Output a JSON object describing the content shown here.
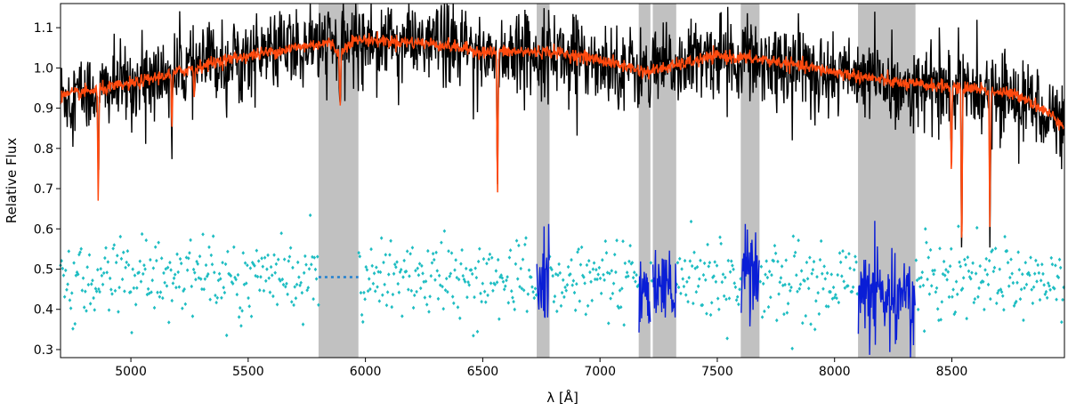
{
  "chart_data": {
    "type": "line",
    "title": "",
    "xlabel": "λ [Å]",
    "ylabel": "Relative Flux",
    "xlim": [
      4700,
      8980
    ],
    "ylim": [
      0.28,
      1.16
    ],
    "xticks": [
      5000,
      5500,
      6000,
      6500,
      7000,
      7500,
      8000,
      8500
    ],
    "yticks": [
      0.3,
      0.4,
      0.5,
      0.6,
      0.7,
      0.8,
      0.9,
      1.0,
      1.1
    ],
    "xtick_labels": [
      "5000",
      "5500",
      "6000",
      "6500",
      "7000",
      "7500",
      "8000",
      "8500"
    ],
    "ytick_labels": [
      "0.3",
      "0.4",
      "0.5",
      "0.6",
      "0.7",
      "0.8",
      "0.9",
      "1.0",
      "1.1"
    ],
    "grid": false,
    "legend": "none",
    "masked_regions": [
      [
        5800,
        5970
      ],
      [
        6730,
        6785
      ],
      [
        7165,
        7215
      ],
      [
        7225,
        7325
      ],
      [
        7600,
        7680
      ],
      [
        8100,
        8345
      ]
    ],
    "continuum": {
      "x": [
        4700,
        5000,
        5400,
        5700,
        5800,
        6000,
        6300,
        6500,
        6800,
        7000,
        7200,
        7500,
        7700,
        8000,
        8300,
        8600,
        8800,
        8980
      ],
      "y": [
        0.93,
        0.96,
        1.02,
        1.05,
        1.06,
        1.07,
        1.06,
        1.04,
        1.04,
        1.02,
        0.99,
        1.03,
        1.02,
        0.99,
        0.96,
        0.95,
        0.93,
        0.86
      ]
    },
    "absorption_lines": [
      {
        "x": 4861,
        "depth": 0.28
      },
      {
        "x": 5175,
        "depth": 0.15
      },
      {
        "x": 5270,
        "depth": 0.08
      },
      {
        "x": 5892,
        "depth": 0.13
      },
      {
        "x": 6563,
        "depth": 0.36
      },
      {
        "x": 8498,
        "depth": 0.22
      },
      {
        "x": 8542,
        "depth": 0.42
      },
      {
        "x": 8662,
        "depth": 0.33
      }
    ],
    "series": [
      {
        "color": "#000000",
        "noise": 0.05,
        "style": "line"
      },
      {
        "color": "#ff4a0f",
        "noise": 0.008,
        "style": "line"
      },
      {
        "color": "#1ebdc2",
        "offset": 0.48,
        "noise": 0.045,
        "style": "markers"
      },
      {
        "color": "#0a1ed6",
        "offset": 0.48,
        "style": "line-in-masked-regions"
      },
      {
        "color": "#1f7fd0",
        "y": 0.48,
        "style": "dotted",
        "x_range": [
          5800,
          5970
        ]
      }
    ],
    "colors": {
      "mask": "#bebebe",
      "axis": "#000000"
    }
  }
}
